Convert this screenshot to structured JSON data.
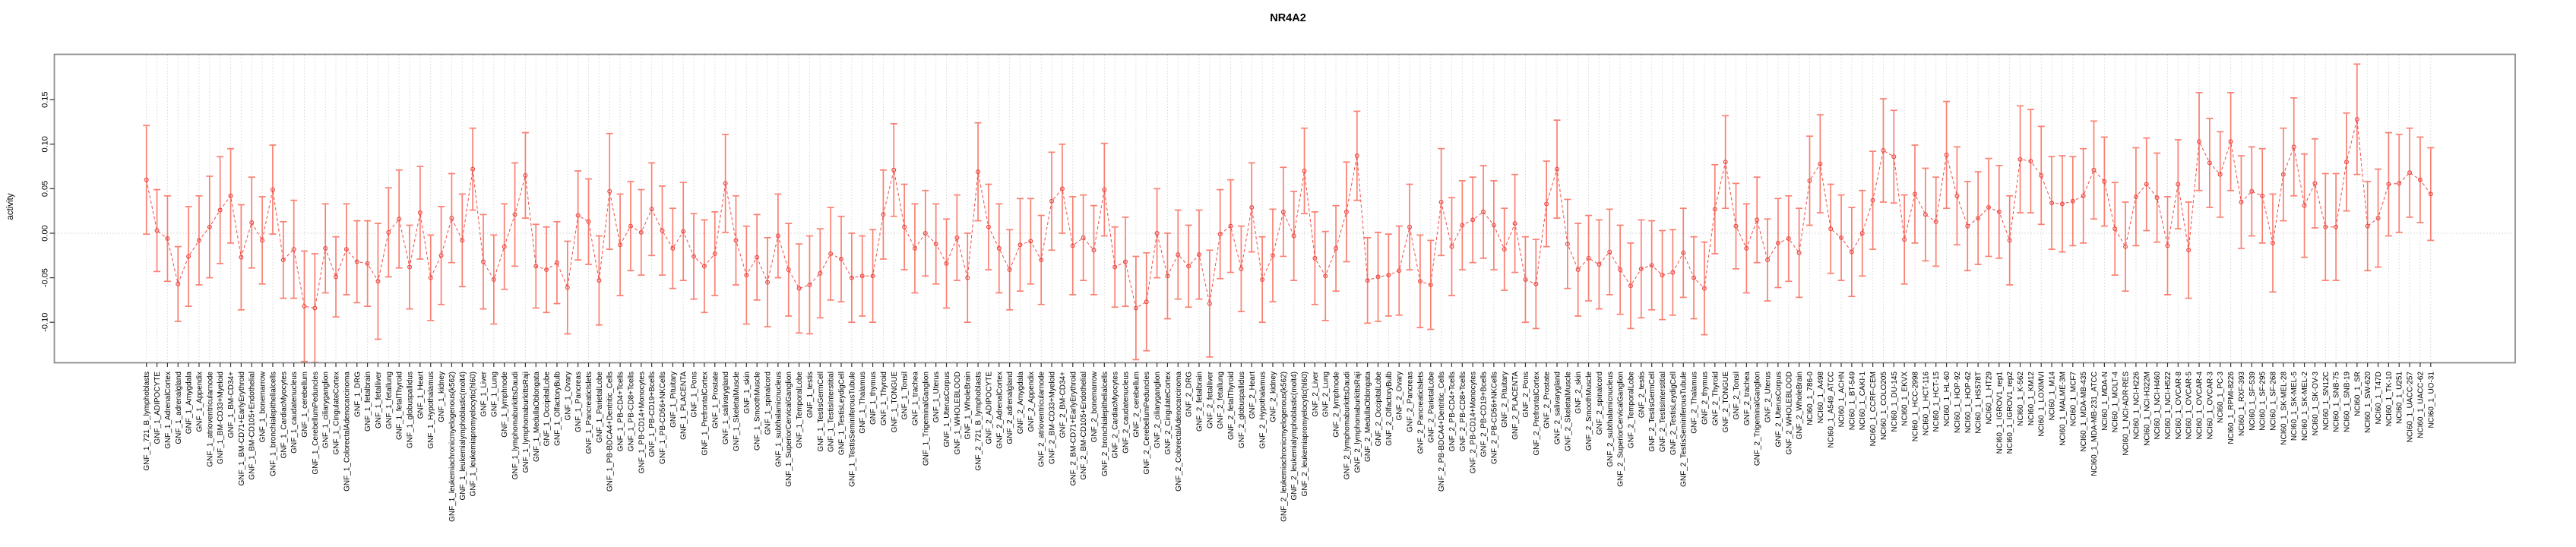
{
  "title": "NR4A2",
  "y_axis": {
    "label": "activity",
    "ticks": [
      0.15,
      0.1,
      0.05,
      0.0,
      -0.05,
      -0.1
    ],
    "tick_labels": [
      "0.15",
      "0.10",
      "0.05",
      "0.00",
      "-0.05",
      "-0.10"
    ]
  },
  "chart_data": {
    "type": "errorbar-line",
    "title": "NR4A2",
    "xlabel": "",
    "ylabel": "activity",
    "ylim": [
      -0.145,
      0.2
    ],
    "grid": "vertical dotted gridline at every category; horizontal dotted line at 0",
    "legend": "none",
    "point_style": "open circle with vertical error bars and dashed connecting line",
    "colors": {
      "error_bar": "#fa8072",
      "point_line": "#ee4b47",
      "grid": "#d8d8d8",
      "zero_line": "#d0d0d0",
      "box": "#8e8e8e",
      "tick": "#333333",
      "text": "#000000",
      "background": "#ffffff"
    },
    "categories": [
      "GNF_1_721_B_lymphoblasts",
      "GNF_1_ADIPOCYTE",
      "GNF_1_AdrenalCortex",
      "GNF_1_adrenalgland",
      "GNF_1_Amygdala",
      "GNF_1_Appendix",
      "GNF_1_atrioventricularnode",
      "GNF_1_BM-CD33+Myeloid",
      "GNF_1_BM-CD34+",
      "GNF_1_BM-CD71+EarlyErythroid",
      "GNF_1_BM-CD105+Endothelial",
      "GNF_1_bonemarrow",
      "GNF_1_bronchialepithelialcells",
      "GNF_1_CardiacMyocytes",
      "GNF_1_caudatenucleus",
      "GNF_1_cerebellum",
      "GNF_1_CerebellumPeduncles",
      "GNF_1_ciliaryganglion",
      "GNF_1_CingulateCortex",
      "GNF_1_ColorectalAdenocarcinoma",
      "GNF_1_DRG",
      "GNF_1_fetalbrain",
      "GNF_1_fetalliver",
      "GNF_1_fetallung",
      "GNF_1_fetalThyroid",
      "GNF_1_globuspallidus",
      "GNF_1_Heart",
      "GNF_1_Hypothalamus",
      "GNF_1_kidney",
      "GNF_1_leukemiachronicmyelogenous(k562)",
      "GNF_1_leukemialymphoblastic(molt4)",
      "GNF_1_leukemiapromyelocytic(hl60)",
      "GNF_1_Liver",
      "GNF_1_Lung",
      "GNF_1_lymphnode",
      "GNF_1_lymphomaburkittsDaudi",
      "GNF_1_lymphomaburkittsRaji",
      "GNF_1_MedullaOblongata",
      "GNF_1_OccipitalLobe",
      "GNF_1_OlfactoryBulb",
      "GNF_1_Ovary",
      "GNF_1_Pancreas",
      "GNF_1_PancreaticIslets",
      "GNF_1_ParietalLobe",
      "GNF_1_PB-BDCA4+Dentritic_Cells",
      "GNF_1_PB-CD4+Tcells",
      "GNF_1_PB-CD8+Tcells",
      "GNF_1_PB-CD14+Monocytes",
      "GNF_1_PB-CD19+Bcells",
      "GNF_1_PB-CD56+NKCells",
      "GNF_1_Pituitary",
      "GNF_1_PLACENTA",
      "GNF_1_Pons",
      "GNF_1_PrefrontalCortex",
      "GNF_1_Prostate",
      "GNF_1_salivarygland",
      "GNF_1_SkeletalMuscle",
      "GNF_1_skin",
      "GNF_1_SmoothMuscle",
      "GNF_1_spinalcord",
      "GNF_1_subthalamicnucleus",
      "GNF_1_SuperiorCervicalGanglion",
      "GNF_1_TemporalLobe",
      "GNF_1_testis",
      "GNF_1_TestisGermCell",
      "GNF_1_TestisInterstitial",
      "GNF_1_TestisLeydigCell",
      "GNF_1_TestisSeminiferousTubule",
      "GNF_1_Thalamus",
      "GNF_1_thymus",
      "GNF_1_Thyroid",
      "GNF_1_TONGUE",
      "GNF_1_Tonsil",
      "GNF_1_trachea",
      "GNF_1_TrigeminalGanglion",
      "GNF_1_Uterus",
      "GNF_1_UterusCorpus",
      "GNF_1_WHOLEBLOOD",
      "GNF_1_WholeBrain",
      "GNF_2_721_B_lymphoblasts",
      "GNF_2_ADIPOCYTE",
      "GNF_2_AdrenalCortex",
      "GNF_2_adrenalgland",
      "GNF_2_Amygdala",
      "GNF_2_Appendix",
      "GNF_2_atrioventricularnode",
      "GNF_2_BM-CD33+Myeloid",
      "GNF_2_BM-CD34+",
      "GNF_2_BM-CD71+EarlyErythroid",
      "GNF_2_BM-CD105+Endothelial",
      "GNF_2_bonemarrow",
      "GNF_2_bronchialepithelialcells",
      "GNF_2_CardiacMyocytes",
      "GNF_2_caudatenucleus",
      "GNF_2_cerebellum",
      "GNF_2_CerebellumPeduncles",
      "GNF_2_ciliaryganglion",
      "GNF_2_CingulateCortex",
      "GNF_2_ColorectalAdenocarcinoma",
      "GNF_2_DRG",
      "GNF_2_fetalbrain",
      "GNF_2_fetalliver",
      "GNF_2_fetallung",
      "GNF_2_fetalThyroid",
      "GNF_2_globuspallidus",
      "GNF_2_Heart",
      "GNF_2_Hypothalamus",
      "GNF_2_kidney",
      "GNF_2_leukemiachronicmyelogenous(k562)",
      "GNF_2_leukemialymphoblastic(molt4)",
      "GNF_2_leukemiapromyelocytic(hl60)",
      "GNF_2_Liver",
      "GNF_2_Lung",
      "GNF_2_lymphnode",
      "GNF_2_lymphomaburkittsDaudi",
      "GNF_2_lymphomaburkittsRaji",
      "GNF_2_MedullaOblongata",
      "GNF_2_OccipitalLobe",
      "GNF_2_OlfactoryBulb",
      "GNF_2_Ovary",
      "GNF_2_Pancreas",
      "GNF_2_PancreaticIslets",
      "GNF_2_ParietalLobe",
      "GNF_2_PB-BDCA4+Dentritic_Cells",
      "GNF_2_PB-CD4+Tcells",
      "GNF_2_PB-CD8+Tcells",
      "GNF_2_PB-CD14+Monocytes",
      "GNF_2_PB-CD19+Bcells",
      "GNF_2_PB-CD56+NKCells",
      "GNF_2_Pituitary",
      "GNF_2_PLACENTA",
      "GNF_2_Pons",
      "GNF_2_PrefrontalCortex",
      "GNF_2_Prostate",
      "GNF_2_salivarygland",
      "GNF_2_SkeletalMuscle",
      "GNF_2_skin",
      "GNF_2_SmoothMuscle",
      "GNF_2_spinalcord",
      "GNF_2_subthalamicnucleus",
      "GNF_2_SuperiorCervicalGanglion",
      "GNF_2_TemporalLobe",
      "GNF_2_testis",
      "GNF_2_TestisGermCell",
      "GNF_2_TestisInterstitial",
      "GNF_2_TestisLeydigCell",
      "GNF_2_TestisSeminiferousTubule",
      "GNF_2_Thalamus",
      "GNF_2_thymus",
      "GNF_2_Thyroid",
      "GNF_2_TONGUE",
      "GNF_2_Tonsil",
      "GNF_2_trachea",
      "GNF_2_TrigeminalGanglion",
      "GNF_2_Uterus",
      "GNF_2_UterusCorpus",
      "GNF_2_WHOLEBLOOD",
      "GNF_2_WholeBrain",
      "NCI60_1_786-0",
      "NCI60_1_A498",
      "NCI60_1_A549_ATCC",
      "NCI60_1_ACHN",
      "NCI60_1_BT-549",
      "NCI60_1_CAKI-1",
      "NCI60_1_CCRF-CEM",
      "NCI60_1_COLO205",
      "NCI60_1_DU-145",
      "NCI60_1_EKVX",
      "NCI60_1_HCC-2998",
      "NCI60_1_HCT-116",
      "NCI60_1_HCT-15",
      "NCI60_1_HL-60",
      "NCI60_1_HOP-92",
      "NCI60_1_HOP-62",
      "NCI60_1_HS578T",
      "NCI60_1_HT29",
      "NCI60_1_IGROV1_rep1",
      "NCI60_1_IGROV1_rep2",
      "NCI60_1_K-562",
      "NCI60_1_KM12",
      "NCI60_1_LOXIMVI",
      "NCI60_1_M14",
      "NCI60_1_MALME-3M",
      "NCI60_1_MCF7",
      "NCI60_1_MDA-MB-435",
      "NCI60_1_MDA-MB-231_ATCC",
      "NCI60_1_MDA-N",
      "NCI60_1_MOLT-4",
      "NCI60_1_NCI-ADR-RES",
      "NCI60_1_NCI-H226",
      "NCI60_1_NCI-H322M",
      "NCI60_1_NCI-H460",
      "NCI60_1_NCI-H522",
      "NCI60_1_OVCAR-8",
      "NCI60_1_OVCAR-5",
      "NCI60_1_OVCAR-4",
      "NCI60_1_OVCAR-3",
      "NCI60_1_PC-3",
      "NCI60_1_RPMI-8226",
      "NCI60_1_RXF-393",
      "NCI60_1_SF-539",
      "NCI60_1_SF-295",
      "NCI60_1_SF-268",
      "NCI60_1_SK-MEL-28",
      "NCI60_1_SK-MEL-5",
      "NCI60_1_SK-MEL-2",
      "NCI60_1_SK-OV-3",
      "NCI60_1_SN12C",
      "NCI60_1_SNB-75",
      "NCI60_1_SNB-19",
      "NCI60_1_SR",
      "NCI60_1_SW-620",
      "NCI60_1_T47D",
      "NCI60_1_TK-10",
      "NCI60_1_U251",
      "NCI60_1_UACC-257",
      "NCI60_1_UACC-62",
      "NCI60_1_UO-31"
    ],
    "values": [
      0.06,
      0.003,
      -0.006,
      -0.057,
      -0.026,
      -0.008,
      0.007,
      0.026,
      0.042,
      -0.027,
      0.012,
      -0.008,
      0.049,
      -0.03,
      -0.018,
      -0.082,
      -0.084,
      -0.017,
      -0.049,
      -0.018,
      -0.032,
      -0.034,
      -0.054,
      0.001,
      0.016,
      -0.038,
      0.023,
      -0.05,
      -0.025,
      0.017,
      -0.008,
      0.072,
      -0.032,
      -0.052,
      -0.015,
      0.021,
      0.065,
      -0.037,
      -0.041,
      -0.033,
      -0.061,
      0.02,
      0.013,
      -0.053,
      0.047,
      -0.013,
      0.008,
      0.001,
      0.027,
      0.003,
      -0.017,
      0.002,
      -0.026,
      -0.037,
      -0.023,
      0.056,
      -0.008,
      -0.047,
      -0.027,
      -0.055,
      -0.003,
      -0.041,
      -0.062,
      -0.058,
      -0.045,
      -0.023,
      -0.029,
      -0.05,
      -0.048,
      -0.048,
      0.021,
      0.071,
      0.007,
      -0.017,
      0.0,
      -0.012,
      -0.034,
      -0.005,
      -0.05,
      0.069,
      0.007,
      -0.017,
      -0.041,
      -0.013,
      -0.009,
      -0.03,
      0.036,
      0.05,
      -0.014,
      -0.005,
      -0.019,
      0.049,
      -0.038,
      -0.032,
      -0.084,
      -0.077,
      0.0,
      -0.048,
      -0.024,
      -0.037,
      -0.024,
      -0.079,
      -0.001,
      0.008,
      -0.04,
      0.029,
      -0.052,
      -0.025,
      0.024,
      -0.003,
      0.07,
      -0.028,
      -0.048,
      -0.017,
      0.024,
      0.087,
      -0.053,
      -0.049,
      -0.047,
      -0.042,
      0.007,
      -0.054,
      -0.058,
      0.035,
      -0.015,
      0.009,
      0.015,
      0.024,
      0.009,
      -0.018,
      0.011,
      -0.052,
      -0.057,
      0.033,
      0.072,
      -0.012,
      -0.041,
      -0.028,
      -0.035,
      -0.021,
      -0.041,
      -0.059,
      -0.04,
      -0.036,
      -0.047,
      -0.044,
      -0.022,
      -0.05,
      -0.062,
      0.027,
      0.08,
      0.008,
      -0.017,
      0.015,
      -0.03,
      -0.011,
      -0.006,
      -0.022,
      0.059,
      0.078,
      0.005,
      -0.005,
      -0.021,
      0.0,
      0.037,
      0.093,
      0.086,
      -0.007,
      0.044,
      0.021,
      0.013,
      0.088,
      0.042,
      0.008,
      0.017,
      0.029,
      0.024,
      -0.008,
      0.083,
      0.081,
      0.065,
      0.034,
      0.033,
      0.036,
      0.042,
      0.071,
      0.058,
      0.005,
      -0.015,
      0.041,
      0.055,
      0.04,
      -0.014,
      0.055,
      -0.019,
      0.103,
      0.079,
      0.066,
      0.103,
      0.035,
      0.047,
      0.042,
      -0.011,
      0.066,
      0.097,
      0.031,
      0.056,
      0.007,
      0.007,
      0.08,
      0.128,
      0.008,
      0.017,
      0.055,
      0.056,
      0.068,
      0.06,
      0.044
    ],
    "errors": [
      0.061,
      0.046,
      0.048,
      0.042,
      0.056,
      0.05,
      0.057,
      0.06,
      0.053,
      0.059,
      0.051,
      0.049,
      0.05,
      0.043,
      0.055,
      0.062,
      0.061,
      0.05,
      0.045,
      0.051,
      0.046,
      0.048,
      0.065,
      0.05,
      0.055,
      0.047,
      0.052,
      0.048,
      0.055,
      0.05,
      0.052,
      0.046,
      0.053,
      0.05,
      0.048,
      0.058,
      0.048,
      0.047,
      0.048,
      0.046,
      0.052,
      0.05,
      0.048,
      0.05,
      0.065,
      0.057,
      0.05,
      0.048,
      0.052,
      0.05,
      0.045,
      0.055,
      0.048,
      0.052,
      0.047,
      0.055,
      0.05,
      0.055,
      0.048,
      0.05,
      0.047,
      0.052,
      0.05,
      0.055,
      0.05,
      0.052,
      0.048,
      0.05,
      0.045,
      0.052,
      0.05,
      0.052,
      0.048,
      0.05,
      0.048,
      0.045,
      0.05,
      0.048,
      0.05,
      0.055,
      0.048,
      0.05,
      0.045,
      0.052,
      0.048,
      0.05,
      0.055,
      0.05,
      0.055,
      0.048,
      0.05,
      0.052,
      0.045,
      0.05,
      0.058,
      0.055,
      0.05,
      0.048,
      0.05,
      0.046,
      0.05,
      0.06,
      0.05,
      0.052,
      0.048,
      0.05,
      0.048,
      0.052,
      0.05,
      0.05,
      0.048,
      0.052,
      0.05,
      0.048,
      0.056,
      0.05,
      0.048,
      0.05,
      0.046,
      0.05,
      0.048,
      0.052,
      0.05,
      0.06,
      0.055,
      0.05,
      0.048,
      0.052,
      0.05,
      0.046,
      0.055,
      0.048,
      0.05,
      0.048,
      0.055,
      0.05,
      0.052,
      0.048,
      0.05,
      0.048,
      0.05,
      0.048,
      0.055,
      0.05,
      0.05,
      0.048,
      0.05,
      0.046,
      0.052,
      0.05,
      0.052,
      0.048,
      0.05,
      0.048,
      0.046,
      0.05,
      0.048,
      0.05,
      0.05,
      0.055,
      0.05,
      0.048,
      0.05,
      0.048,
      0.055,
      0.058,
      0.052,
      0.05,
      0.055,
      0.052,
      0.05,
      0.06,
      0.055,
      0.05,
      0.052,
      0.055,
      0.052,
      0.05,
      0.06,
      0.058,
      0.055,
      0.052,
      0.054,
      0.05,
      0.053,
      0.055,
      0.05,
      0.052,
      0.05,
      0.055,
      0.052,
      0.05,
      0.055,
      0.05,
      0.054,
      0.055,
      0.05,
      0.048,
      0.055,
      0.052,
      0.05,
      0.053,
      0.055,
      0.052,
      0.055,
      0.058,
      0.05,
      0.06,
      0.06,
      0.055,
      0.062,
      0.05,
      0.055,
      0.058,
      0.055,
      0.05,
      0.048,
      0.052
    ]
  }
}
